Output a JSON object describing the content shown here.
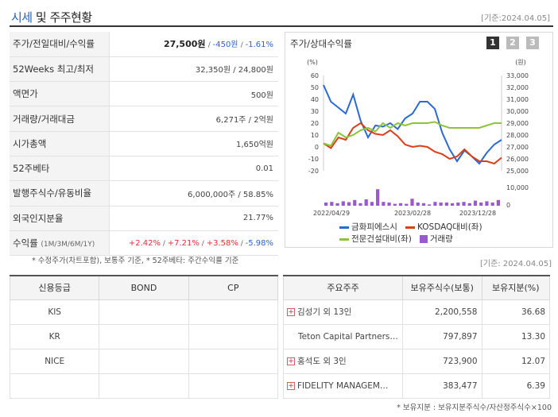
{
  "header": {
    "title_main": "시세",
    "title_rest": " 및 주주현황",
    "date": "[기준:2024.04.05]"
  },
  "summary": [
    {
      "label": "주가/전일대비/수익률",
      "v1": "27,500원",
      "v2": "-450원",
      "v3": "-1.61%"
    },
    {
      "label": "52Weeks 최고/최저",
      "value": "32,350원 / 24,800원"
    },
    {
      "label": "액면가",
      "value": "500원"
    },
    {
      "label": "거래량/거래대금",
      "value": "6,271주 / 2억원"
    },
    {
      "label": "시가총액",
      "value": "1,650억원"
    },
    {
      "label": "52주베타",
      "value": "0.01"
    },
    {
      "label": "발행주식수/유동비율",
      "value": "6,000,000주 / 58.85%"
    },
    {
      "label": "외국인지분율",
      "value": "21.77%"
    },
    {
      "label": "수익률",
      "label_small": "(1M/3M/6M/1Y)",
      "r1": "+2.42%",
      "r2": "+7.21%",
      "r3": "+3.58%",
      "r4": "-5.98%"
    }
  ],
  "note_left": "* 수정주가(차트포함), 보통주 기준, * 52주베타: 주간수익률 기준",
  "chart": {
    "title": "주가/상대수익률",
    "pages": [
      "1",
      "2",
      "3"
    ],
    "left_unit": "(%)",
    "right_unit": "(원)",
    "left_ticks": [
      "60",
      "50",
      "40",
      "30",
      "20",
      "10",
      "0",
      "-10",
      "-20"
    ],
    "right_ticks": [
      "33,000",
      "32,000",
      "31,000",
      "30,000",
      "29,000",
      "28,000",
      "27,000",
      "26,000",
      "25,000"
    ],
    "vol_ticks": [
      "10,000",
      "0"
    ],
    "x_labels": [
      "2022/04/29",
      "2023/02/28",
      "2023/12/28"
    ],
    "legend": [
      {
        "name": "금화피에스시",
        "color": "#2a6ad4"
      },
      {
        "name": "KOSDAQ대비(좌)",
        "color": "#d9401a"
      },
      {
        "name": "전문건설대비(좌)",
        "color": "#8cc43a"
      },
      {
        "name": "거래량",
        "color": "#9b59d0"
      }
    ]
  },
  "chart_data": {
    "type": "line",
    "x_labels": [
      "2022/04/29",
      "2023/02/28",
      "2023/12/28"
    ],
    "ylim_left": [
      -20,
      60
    ],
    "ylim_right": [
      25000,
      33000
    ],
    "series": [
      {
        "name": "금화피에스시",
        "axis": "left",
        "values": [
          52,
          38,
          33,
          28,
          44,
          22,
          8,
          18,
          17,
          20,
          15,
          24,
          28,
          38,
          38,
          32,
          12,
          -2,
          -12,
          -3,
          -8,
          -14,
          -5,
          2,
          6
        ]
      },
      {
        "name": "KOSDAQ대비(좌)",
        "axis": "left",
        "values": [
          3,
          -1,
          8,
          6,
          16,
          20,
          14,
          11,
          10,
          14,
          9,
          2,
          0,
          1,
          0,
          -4,
          -6,
          -10,
          -8,
          -2,
          -8,
          -12,
          -12,
          -14,
          -9
        ]
      },
      {
        "name": "전문건설대비(좌)",
        "axis": "left",
        "values": [
          3,
          1,
          12,
          8,
          10,
          14,
          16,
          13,
          20,
          16,
          20,
          18,
          20,
          20,
          20,
          21,
          18,
          16,
          16,
          16,
          16,
          16,
          18,
          20,
          20
        ]
      },
      {
        "name": "거래량",
        "axis": "volume",
        "values": [
          2500,
          3000,
          2000,
          3500,
          2800,
          4500,
          2000,
          5000,
          3000,
          13000,
          3000,
          2500,
          1500,
          2000,
          1500,
          5500,
          2500,
          2000,
          1000,
          3000,
          2500,
          2500,
          2000,
          2500,
          3000,
          2000,
          4000,
          2500,
          3500,
          2500,
          4500
        ]
      }
    ]
  },
  "date_right": "[기준: 2024.04.05]",
  "credit": {
    "headers": [
      "신용등급",
      "BOND",
      "CP"
    ],
    "rows": [
      [
        "KIS",
        "",
        ""
      ],
      [
        "KR",
        "",
        ""
      ],
      [
        "NICE",
        "",
        ""
      ]
    ]
  },
  "shareholders": {
    "headers": [
      "주요주주",
      "보유주식수(보통)",
      "보유지분(%)"
    ],
    "rows": [
      {
        "name": "김성기 외 13인",
        "shares": "2,200,558",
        "pct": "36.68",
        "plus": true
      },
      {
        "name": "Teton Capital Partners…",
        "shares": "797,897",
        "pct": "13.30",
        "plus": false
      },
      {
        "name": "홍석도 외 3인",
        "shares": "723,900",
        "pct": "12.07",
        "plus": true
      },
      {
        "name": "FIDELITY MANAGEM…",
        "shares": "383,477",
        "pct": "6.39",
        "plus": true
      }
    ]
  },
  "note_right": "* 보유지분 : 보유지분주식수/자산정주식수×100"
}
